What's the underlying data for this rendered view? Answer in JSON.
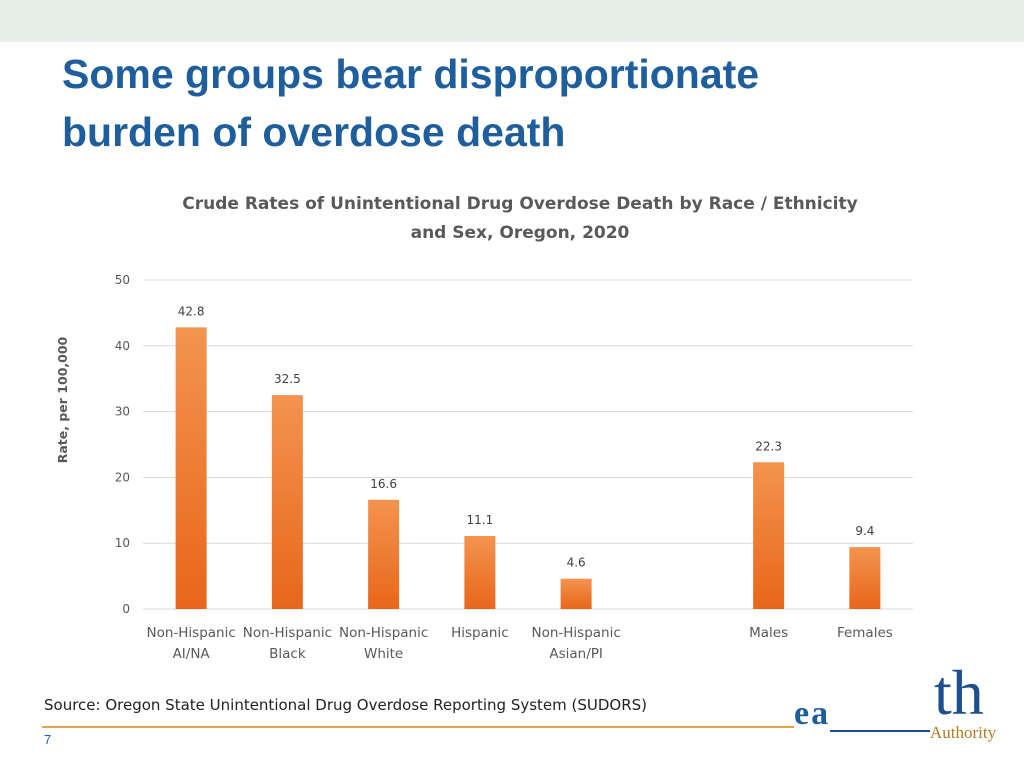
{
  "slide": {
    "title_lines": [
      "Some groups bear disproportionate",
      "burden of overdose death"
    ],
    "source": "Source: Oregon State Unintentional Drug Overdose Reporting System (SUDORS)",
    "page_number": "7",
    "logo_text": "th",
    "logo_fragment": "ea",
    "logo_subtext": "Authority"
  },
  "colors": {
    "title": "#1f5e9c",
    "bar_top": "#f3944f",
    "bar_bottom": "#e8661a",
    "grid": "#d9d9d9"
  },
  "chart_data": {
    "type": "bar",
    "title_lines": [
      "Crude Rates of Unintentional Drug Overdose Death by Race / Ethnicity",
      "and Sex, Oregon, 2020"
    ],
    "ylabel": "Rate, per 100,000",
    "xlabel": "",
    "ylim": [
      0,
      50
    ],
    "yticks": [
      0,
      10,
      20,
      30,
      40,
      50
    ],
    "grid": true,
    "legend": "none",
    "categories": [
      {
        "lines": [
          "Non-Hispanic",
          "AI/NA"
        ],
        "value": 42.8,
        "label": "42.8",
        "slot": 0
      },
      {
        "lines": [
          "Non-Hispanic",
          "Black"
        ],
        "value": 32.5,
        "label": "32.5",
        "slot": 1
      },
      {
        "lines": [
          "Non-Hispanic",
          "White"
        ],
        "value": 16.6,
        "label": "16.6",
        "slot": 2
      },
      {
        "lines": [
          "Hispanic"
        ],
        "value": 11.1,
        "label": "11.1",
        "slot": 3
      },
      {
        "lines": [
          "Non-Hispanic",
          "Asian/PI"
        ],
        "value": 4.6,
        "label": "4.6",
        "slot": 4
      },
      {
        "lines": [
          "Males"
        ],
        "value": 22.3,
        "label": "22.3",
        "slot": 6
      },
      {
        "lines": [
          "Females"
        ],
        "value": 9.4,
        "label": "9.4",
        "slot": 7
      }
    ]
  }
}
